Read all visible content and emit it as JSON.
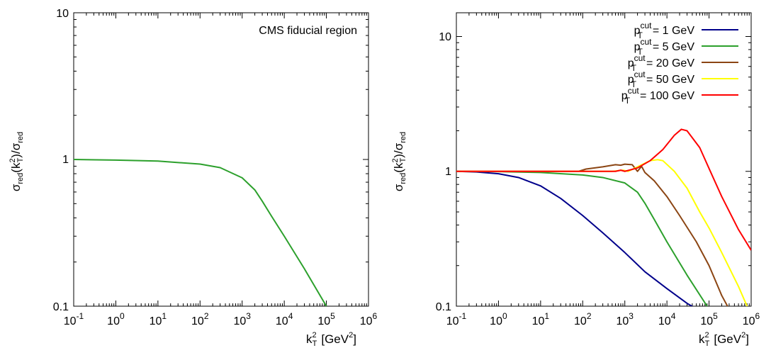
{
  "chart_data": [
    {
      "type": "line",
      "x_scale": "log",
      "y_scale": "log",
      "xlim": [
        0.1,
        1000000
      ],
      "ylim": [
        0.1,
        10
      ],
      "xlabel": "k_T^2 [GeV^2]",
      "ylabel": "σ_red(k_T^2)/σ_red",
      "grid": false,
      "annotation": "CMS fiducial region",
      "x_tick_labels": [
        "10^-1",
        "10^0",
        "10^1",
        "10^2",
        "10^3",
        "10^4",
        "10^5",
        "10^6"
      ],
      "y_tick_labels": [
        "0.1",
        "1",
        "10"
      ],
      "series": [
        {
          "color": "#2ca02c",
          "points": [
            [
              0.1,
              1.0
            ],
            [
              1,
              0.99
            ],
            [
              10,
              0.975
            ],
            [
              100,
              0.93
            ],
            [
              300,
              0.88
            ],
            [
              1000,
              0.75
            ],
            [
              2000,
              0.62
            ],
            [
              3000,
              0.52
            ],
            [
              5000,
              0.41
            ],
            [
              10000,
              0.3
            ],
            [
              30000,
              0.18
            ],
            [
              100000,
              0.1
            ]
          ]
        }
      ]
    },
    {
      "type": "line",
      "x_scale": "log",
      "y_scale": "log",
      "xlim": [
        0.1,
        1000000
      ],
      "ylim": [
        0.1,
        15
      ],
      "xlabel": "k_T^2 [GeV^2]",
      "ylabel": "σ_red(k_T^2)/σ_red",
      "grid": false,
      "legend_position": "top-right",
      "x_tick_labels": [
        "10^-1",
        "10^0",
        "10^1",
        "10^2",
        "10^3",
        "10^4",
        "10^5",
        "10^6"
      ],
      "y_tick_labels": [
        "0.1",
        "1",
        "10"
      ],
      "series": [
        {
          "name": "p_T^cut = 1 GeV",
          "color": "#00008b",
          "points": [
            [
              0.1,
              1.0
            ],
            [
              0.3,
              0.99
            ],
            [
              1,
              0.96
            ],
            [
              3,
              0.9
            ],
            [
              10,
              0.78
            ],
            [
              30,
              0.63
            ],
            [
              100,
              0.47
            ],
            [
              300,
              0.35
            ],
            [
              1000,
              0.25
            ],
            [
              3000,
              0.18
            ],
            [
              10000,
              0.135
            ],
            [
              30000,
              0.105
            ],
            [
              70000,
              0.09
            ]
          ]
        },
        {
          "name": "p_T^cut = 5 GeV",
          "color": "#2ca02c",
          "points": [
            [
              0.1,
              1.0
            ],
            [
              1,
              0.995
            ],
            [
              10,
              0.98
            ],
            [
              100,
              0.94
            ],
            [
              300,
              0.9
            ],
            [
              1000,
              0.82
            ],
            [
              2000,
              0.7
            ],
            [
              3000,
              0.58
            ],
            [
              5000,
              0.44
            ],
            [
              10000,
              0.3
            ],
            [
              30000,
              0.17
            ],
            [
              90000,
              0.1
            ]
          ]
        },
        {
          "name": "p_T^cut = 20 GeV",
          "color": "#8b4513",
          "points": [
            [
              0.1,
              1.0
            ],
            [
              10,
              1.0
            ],
            [
              80,
              1.0
            ],
            [
              120,
              1.04
            ],
            [
              300,
              1.08
            ],
            [
              600,
              1.12
            ],
            [
              800,
              1.11
            ],
            [
              1000,
              1.13
            ],
            [
              1500,
              1.12
            ],
            [
              2000,
              1.0
            ],
            [
              2500,
              1.09
            ],
            [
              3000,
              0.98
            ],
            [
              5000,
              0.85
            ],
            [
              10000,
              0.65
            ],
            [
              20000,
              0.47
            ],
            [
              50000,
              0.3
            ],
            [
              100000,
              0.2
            ],
            [
              200000,
              0.12
            ],
            [
              300000,
              0.095
            ]
          ]
        },
        {
          "name": "p_T^cut = 50 GeV",
          "color": "#ffff00",
          "points": [
            [
              0.1,
              1.0
            ],
            [
              100,
              1.0
            ],
            [
              500,
              1.0
            ],
            [
              900,
              1.02
            ],
            [
              1200,
              1.0
            ],
            [
              2000,
              1.08
            ],
            [
              4000,
              1.2
            ],
            [
              6000,
              1.22
            ],
            [
              8000,
              1.2
            ],
            [
              15000,
              1.0
            ],
            [
              30000,
              0.75
            ],
            [
              60000,
              0.5
            ],
            [
              100000,
              0.38
            ],
            [
              200000,
              0.25
            ],
            [
              500000,
              0.14
            ],
            [
              800000,
              0.1
            ]
          ]
        },
        {
          "name": "p_T^cut = 100 GeV",
          "color": "#ff0000",
          "points": [
            [
              0.1,
              1.0
            ],
            [
              200,
              1.0
            ],
            [
              600,
              1.0
            ],
            [
              800,
              1.02
            ],
            [
              1000,
              1.0
            ],
            [
              2000,
              1.06
            ],
            [
              4000,
              1.2
            ],
            [
              8000,
              1.45
            ],
            [
              15000,
              1.85
            ],
            [
              22000,
              2.05
            ],
            [
              30000,
              2.0
            ],
            [
              60000,
              1.5
            ],
            [
              100000,
              1.05
            ],
            [
              200000,
              0.65
            ],
            [
              500000,
              0.37
            ],
            [
              1000000,
              0.26
            ]
          ]
        }
      ]
    }
  ]
}
